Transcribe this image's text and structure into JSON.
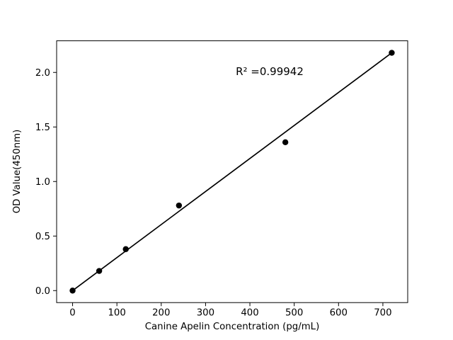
{
  "figure": {
    "background": "#ffffff"
  },
  "chart_data": {
    "type": "scatter",
    "title": "",
    "xlabel": "Canine Apelin Concentration (pg/mL)",
    "ylabel": "OD Value(450nm)",
    "annotation": "R² =0.99942",
    "series": [
      {
        "name": "standard-curve-points",
        "x": [
          0,
          60,
          120,
          240,
          480,
          720
        ],
        "y": [
          0.0,
          0.18,
          0.38,
          0.78,
          1.36,
          2.18
        ]
      }
    ],
    "trend_line": {
      "x": [
        0,
        720
      ],
      "y": [
        0.0,
        2.18
      ]
    },
    "xticks": [
      0,
      100,
      200,
      300,
      400,
      500,
      600,
      700
    ],
    "xtick_labels": [
      "0",
      "100",
      "200",
      "300",
      "400",
      "500",
      "600",
      "700"
    ],
    "yticks": [
      0.0,
      0.5,
      1.0,
      1.5,
      2.0
    ],
    "ytick_labels": [
      "0.0",
      "0.5",
      "1.0",
      "1.5",
      "2.0"
    ],
    "xlim": [
      -36,
      756
    ],
    "ylim": [
      -0.11,
      2.29
    ],
    "grid": false,
    "legend": "none",
    "marker_color": "#000000",
    "line_color": "#000000",
    "axis_color": "#000000",
    "background_color": "#ffffff"
  }
}
